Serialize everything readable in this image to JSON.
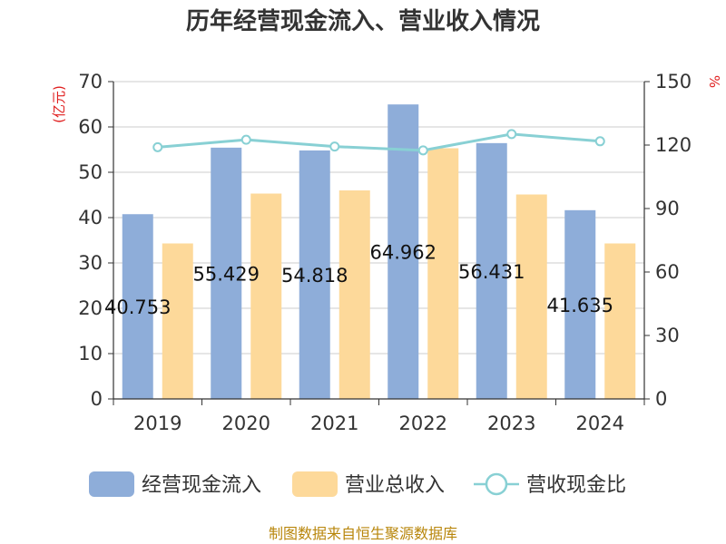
{
  "chart_data": {
    "type": "bar",
    "title": "历年经营现金流入、营业收入情况",
    "categories": [
      "2019",
      "2020",
      "2021",
      "2022",
      "2023",
      "2024"
    ],
    "y_left": {
      "unit": "(亿元)",
      "min": 0,
      "max": 70,
      "ticks": [
        0,
        10,
        20,
        30,
        40,
        50,
        60,
        70
      ]
    },
    "y_right": {
      "unit": "%",
      "min": 0,
      "max": 150,
      "ticks": [
        0,
        30,
        60,
        90,
        120,
        150
      ]
    },
    "series": [
      {
        "name": "经营现金流入",
        "type": "bar",
        "axis": "left",
        "color": "#8eadd9",
        "values": [
          40.753,
          55.429,
          54.818,
          64.962,
          56.431,
          41.635
        ],
        "labels": [
          "40.753",
          "55.429",
          "54.818",
          "64.962",
          "56.431",
          "41.635"
        ]
      },
      {
        "name": "营业总收入",
        "type": "bar",
        "axis": "left",
        "color": "#fdd99a",
        "values": [
          34.3,
          45.3,
          46.0,
          55.3,
          45.1,
          34.3
        ]
      },
      {
        "name": "营收现金比",
        "type": "line",
        "axis": "right",
        "color": "#88d0d4",
        "values": [
          119,
          122.5,
          119.3,
          117.5,
          125.2,
          121.8
        ]
      }
    ],
    "grid": true,
    "legend_position": "bottom"
  },
  "source": "制图数据来自恒生聚源数据库"
}
